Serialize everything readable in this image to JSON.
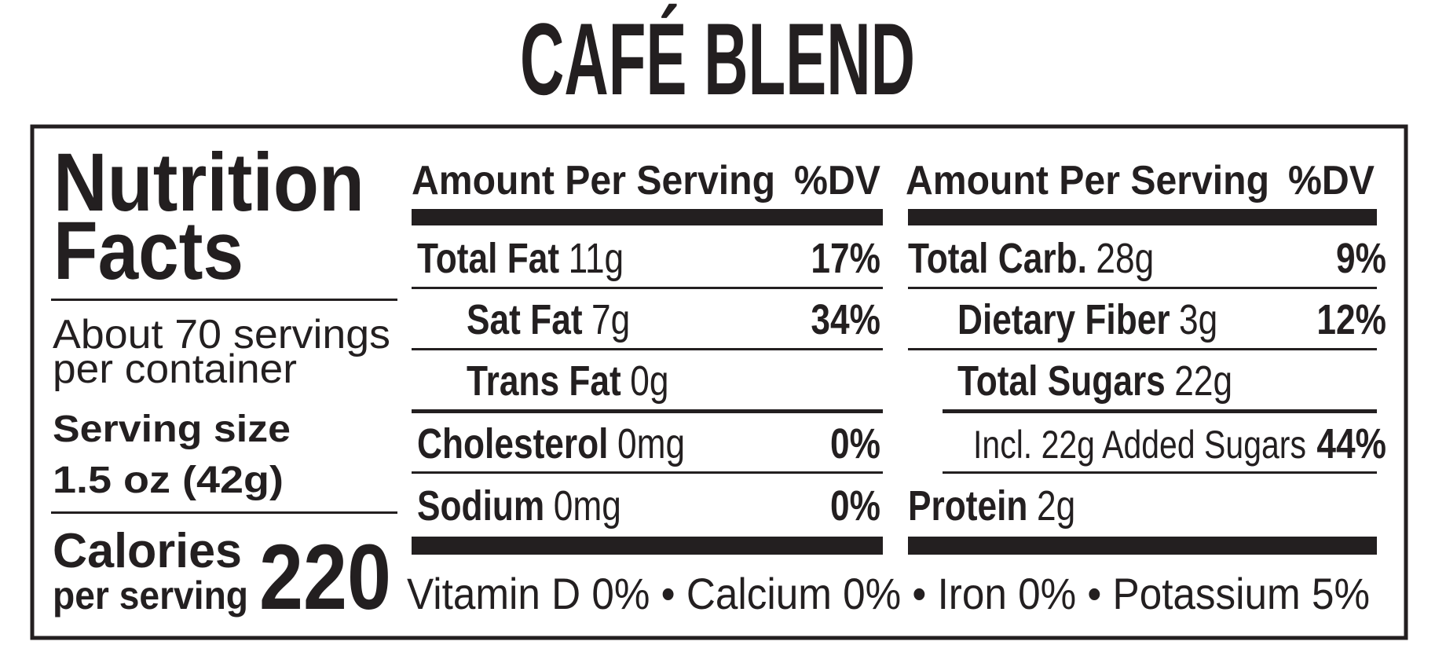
{
  "title": "CAFÉ BLEND",
  "facts": {
    "heading": [
      "Nutrition",
      "Facts"
    ],
    "servings": [
      "About 70 servings",
      "per container"
    ],
    "serving_size": {
      "label": "Serving size",
      "value": "1.5 oz (42g)"
    },
    "calories": {
      "label": [
        "Calories",
        "per serving"
      ],
      "value": "220"
    }
  },
  "tables": [
    {
      "header": [
        "Amount Per Serving",
        "%DV"
      ],
      "rows": [
        {
          "name": "Total Fat",
          "amount": "11g",
          "dv": "17%"
        },
        {
          "name": "Sat Fat",
          "amount": "7g",
          "dv": "34%"
        },
        {
          "name": "Trans Fat",
          "amount": "0g"
        },
        {
          "name": "Cholesterol",
          "amount": "0mg",
          "dv": "0%"
        },
        {
          "name": "Sodium",
          "amount": "0mg",
          "dv": "0%"
        }
      ]
    },
    {
      "header": [
        "Amount Per Serving",
        "%DV"
      ],
      "rows": [
        {
          "name": "Total Carb.",
          "amount": "28g",
          "dv": "9%"
        },
        {
          "name": "Dietary Fiber",
          "amount": "3g",
          "dv": "12%"
        },
        {
          "name": "Total Sugars",
          "amount": "22g"
        },
        {
          "name": "Incl. 22g Added Sugars",
          "dv": "44%"
        },
        {
          "name": "Protein",
          "amount": "2g"
        }
      ]
    }
  ],
  "footer": "Vitamin D 0% • Calcium 0% • Iron 0% • Potassium 5%"
}
